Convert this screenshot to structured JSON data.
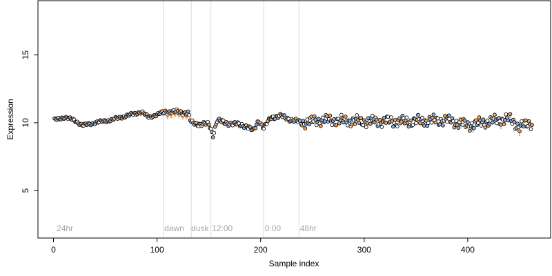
{
  "chart_data": {
    "type": "scatter",
    "xlabel": "Sample index",
    "ylabel": "Expression",
    "xlim": [
      -15,
      480
    ],
    "ylim": [
      1.5,
      19
    ],
    "xticks": [
      0,
      100,
      200,
      300,
      400
    ],
    "yticks": [
      5,
      10,
      15
    ],
    "grid": false,
    "colors": {
      "orange": "#f4a460",
      "blue": "#87b4e6",
      "outline": "#000000",
      "vline": "#d9d9d9",
      "vline_label": "#a6a6a6"
    },
    "vlines": [
      {
        "x": 106,
        "label": ""
      },
      {
        "x": 133,
        "label": ""
      },
      {
        "x": 152,
        "label": ""
      },
      {
        "x": 203,
        "label": ""
      },
      {
        "x": 237,
        "label": ""
      }
    ],
    "annotations": [
      {
        "x": 3,
        "y": 2.0,
        "text": "24hr"
      },
      {
        "x": 107,
        "y": 2.0,
        "text": "dawn"
      },
      {
        "x": 133,
        "y": 2.0,
        "text": "dusk"
      },
      {
        "x": 153,
        "y": 2.0,
        "text": "12:00"
      },
      {
        "x": 204,
        "y": 2.0,
        "text": "0:00"
      },
      {
        "x": 238,
        "y": 2.0,
        "text": "48hr"
      }
    ],
    "anchors": [
      [
        1,
        10.2
      ],
      [
        5,
        10.3
      ],
      [
        10,
        10.4
      ],
      [
        20,
        10.2
      ],
      [
        28,
        9.8
      ],
      [
        40,
        10.0
      ],
      [
        55,
        10.2
      ],
      [
        65,
        10.4
      ],
      [
        75,
        10.6
      ],
      [
        85,
        10.8
      ],
      [
        92,
        10.4
      ],
      [
        100,
        10.6
      ],
      [
        108,
        10.8
      ],
      [
        120,
        10.8
      ],
      [
        130,
        10.7
      ],
      [
        133,
        10.0
      ],
      [
        140,
        9.9
      ],
      [
        150,
        9.9
      ],
      [
        154,
        9.1
      ],
      [
        158,
        10.2
      ],
      [
        165,
        10.0
      ],
      [
        175,
        9.9
      ],
      [
        185,
        9.8
      ],
      [
        193,
        9.4
      ],
      [
        198,
        10.2
      ],
      [
        203,
        9.6
      ],
      [
        210,
        10.4
      ],
      [
        220,
        10.5
      ],
      [
        230,
        10.2
      ],
      [
        240,
        10.0
      ],
      [
        260,
        10.2
      ],
      [
        300,
        10.1
      ],
      [
        340,
        10.1
      ],
      [
        380,
        10.2
      ],
      [
        400,
        9.8
      ],
      [
        420,
        10.1
      ],
      [
        440,
        10.3
      ],
      [
        450,
        9.7
      ],
      [
        462,
        10.0
      ]
    ]
  }
}
